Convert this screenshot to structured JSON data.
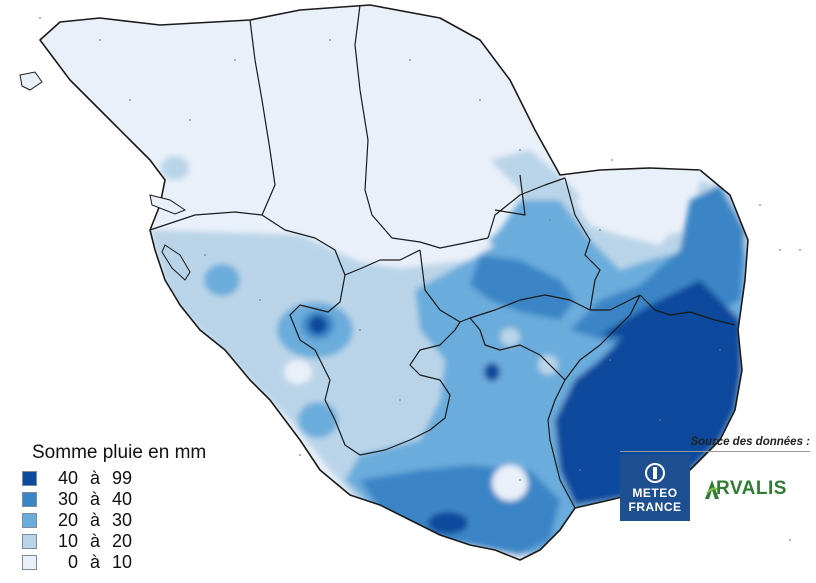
{
  "map": {
    "palette": {
      "very_high": "#0b4a9c",
      "high": "#3a85c6",
      "medium": "#6aacdb",
      "low": "#b9d4e8",
      "very_low": "#eaf0f9",
      "outline": "#1a1a1a"
    }
  },
  "legend": {
    "title": "Somme pluie en mm",
    "classes": [
      {
        "from": "40",
        "sep": "à",
        "to": "99",
        "color": "#0b4a9c"
      },
      {
        "from": "30",
        "sep": "à",
        "to": "40",
        "color": "#3a85c6"
      },
      {
        "from": "20",
        "sep": "à",
        "to": "30",
        "color": "#6aacdb"
      },
      {
        "from": "10",
        "sep": "à",
        "to": "20",
        "color": "#b9d4e8"
      },
      {
        "from": "0",
        "sep": "à",
        "to": "10",
        "color": "#eaf0f9"
      }
    ]
  },
  "source": {
    "title": "Source des données :",
    "meteo_line1": "METEO",
    "meteo_line2": "FRANCE",
    "arvalis": "RVALIS",
    "meteo_color": "#1d4f91",
    "arvalis_color": "#2e7d32"
  }
}
